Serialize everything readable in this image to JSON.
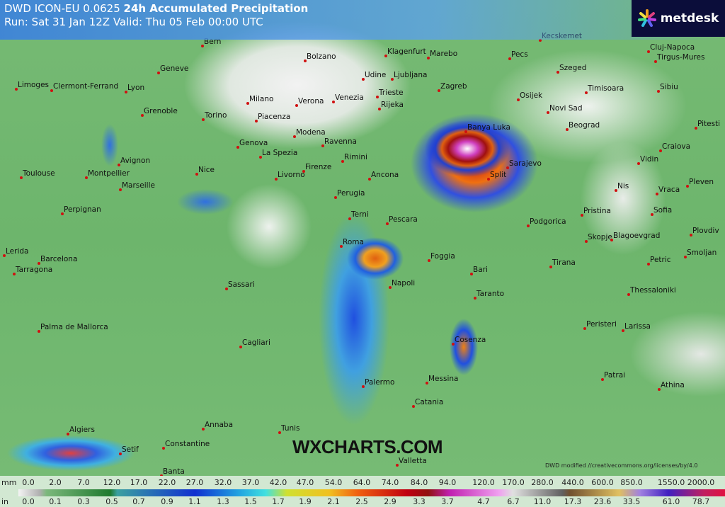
{
  "header": {
    "model": "DWD ICON-EU 0.0625",
    "product": "24h Accumulated Precipitation",
    "run_line": "Run: Sat 31 Jan 12Z Valid: Thu 05 Feb 00:00 UTC"
  },
  "logo": {
    "name": "metdesk",
    "icon": "asterisk-flower-icon"
  },
  "watermark": "WXCHARTS.COM",
  "credit": "DWD modified //creativecommons.org/licenses/by/4.0",
  "cities": [
    "Bern",
    "Bolzano",
    "Klagenfurt",
    "Marebo",
    "Pecs",
    "Kecskemet",
    "Cluj-Napoca",
    "Tirgus-Mures",
    "Geneve",
    "Szeged",
    "Limoges",
    "Clermont-Ferrand",
    "Lyon",
    "Milano",
    "Verona",
    "Venezia",
    "Udine",
    "Ljubljana",
    "Trieste",
    "Rijeka",
    "Zagreb",
    "Osijek",
    "Timisoara",
    "Sibiu",
    "Grenoble",
    "Torino",
    "Piacenza",
    "Novi Sad",
    "Modena",
    "Ravenna",
    "Banya Luka",
    "Beograd",
    "Pitesti",
    "Genova",
    "La Spezia",
    "Rimini",
    "Craiova",
    "Avignon",
    "Toulouse",
    "Montpellier",
    "Nice",
    "Livorno",
    "Firenze",
    "Ancona",
    "Split",
    "Sarajevo",
    "Vidin",
    "Marseille",
    "Nis",
    "Vraca",
    "Pleven",
    "Perugia",
    "Perpignan",
    "Terni",
    "Pescara",
    "Pristina",
    "Sofia",
    "Podgorica",
    "Skopje",
    "Blagoevgrad",
    "Plovdiv",
    "Lerida",
    "Barcelona",
    "Roma",
    "Foggia",
    "Smoljan",
    "Tarragona",
    "Bari",
    "Tirana",
    "Petric",
    "Napoli",
    "Taranto",
    "Thessaloniki",
    "Sassari",
    "Palma de Mallorca",
    "Cagliari",
    "Cosenza",
    "Peristeri",
    "Larissa",
    "Palermo",
    "Messina",
    "Patrai",
    "Athina",
    "Catania",
    "Algiers",
    "Annaba",
    "Tunis",
    "Constantine",
    "Setif",
    "Banta",
    "Valletta"
  ],
  "legend": {
    "mm_unit": "mm",
    "in_unit": "in",
    "mm": [
      "0.0",
      "2.0",
      "7.0",
      "12.0",
      "17.0",
      "22.0",
      "27.0",
      "32.0",
      "37.0",
      "42.0",
      "47.0",
      "54.0",
      "64.0",
      "74.0",
      "84.0",
      "94.0",
      "120.0",
      "170.0",
      "280.0",
      "440.0",
      "600.0",
      "850.0",
      "1550.0",
      "2000.0"
    ],
    "in": [
      "0.0",
      "0.1",
      "0.3",
      "0.5",
      "0.7",
      "0.9",
      "1.1",
      "1.3",
      "1.5",
      "1.7",
      "1.9",
      "2.1",
      "2.5",
      "2.9",
      "3.3",
      "3.7",
      "4.7",
      "6.7",
      "11.0",
      "17.3",
      "23.6",
      "33.5",
      "61.0",
      "78.7"
    ]
  },
  "colors": {
    "header_bg": "#3c82dc",
    "logo_bg": "#0b0d3a",
    "land_green": "#6db56c",
    "heavy_red": "#c01818",
    "extreme_magenta": "#d040c0"
  }
}
